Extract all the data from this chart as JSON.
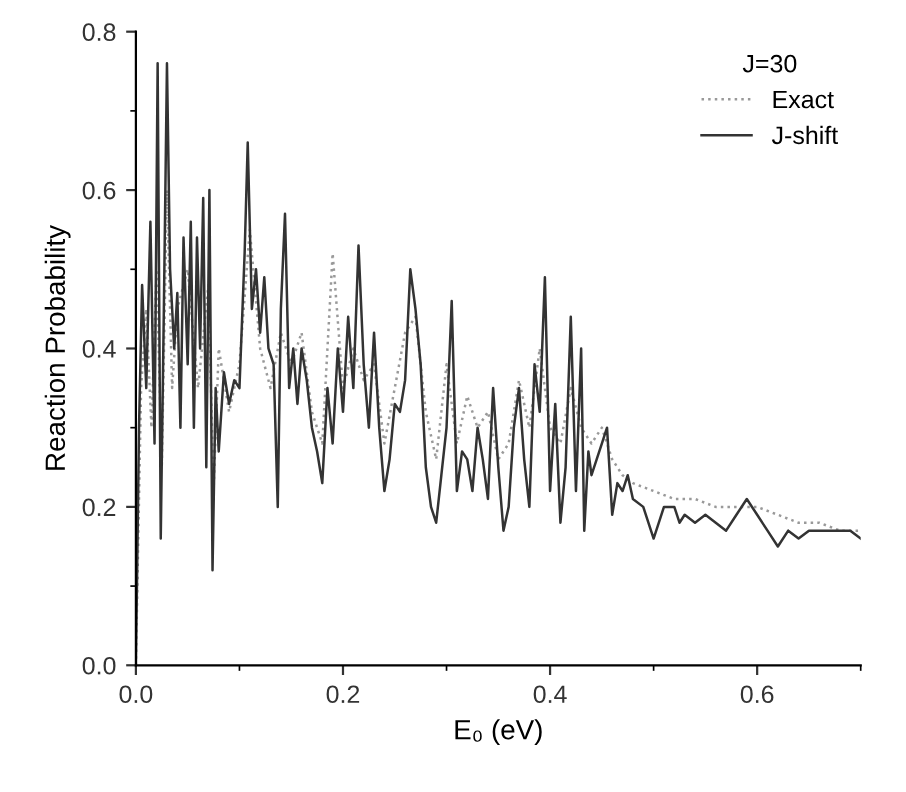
{
  "chart_data": {
    "type": "line",
    "xlabel": "E₀ (eV)",
    "ylabel": "Reaction Probability",
    "legend_title": "J=30",
    "legend": "top right",
    "grid": false,
    "marker": "none",
    "xlim": [
      0,
      0.7
    ],
    "ylim": [
      0,
      0.8
    ],
    "xticks": [
      {
        "value": 0,
        "label": "0.0"
      },
      0.2,
      0.4,
      0.6
    ],
    "yticks": [
      {
        "value": 0,
        "label": "0.0"
      },
      0.2,
      0.4,
      0.6,
      0.8
    ],
    "series": [
      {
        "name": "Exact",
        "color": "#999999",
        "line_style": "dotted",
        "x": [
          0.0,
          0.005,
          0.01,
          0.015,
          0.02,
          0.025,
          0.03,
          0.035,
          0.04,
          0.05,
          0.06,
          0.07,
          0.075,
          0.08,
          0.09,
          0.1,
          0.11,
          0.12,
          0.13,
          0.14,
          0.15,
          0.16,
          0.17,
          0.18,
          0.19,
          0.2,
          0.21,
          0.22,
          0.23,
          0.24,
          0.25,
          0.26,
          0.27,
          0.28,
          0.29,
          0.3,
          0.31,
          0.32,
          0.33,
          0.34,
          0.35,
          0.36,
          0.37,
          0.38,
          0.39,
          0.4,
          0.41,
          0.42,
          0.43,
          0.44,
          0.45,
          0.46,
          0.47,
          0.48,
          0.5,
          0.52,
          0.54,
          0.56,
          0.58,
          0.6,
          0.62,
          0.64,
          0.66,
          0.68,
          0.7
        ],
        "values": [
          0.0,
          0.35,
          0.45,
          0.3,
          0.5,
          0.25,
          0.6,
          0.35,
          0.45,
          0.5,
          0.35,
          0.48,
          0.22,
          0.4,
          0.32,
          0.38,
          0.55,
          0.4,
          0.35,
          0.42,
          0.38,
          0.42,
          0.32,
          0.28,
          0.52,
          0.35,
          0.4,
          0.36,
          0.38,
          0.28,
          0.35,
          0.42,
          0.44,
          0.32,
          0.26,
          0.38,
          0.28,
          0.34,
          0.3,
          0.32,
          0.26,
          0.28,
          0.36,
          0.3,
          0.4,
          0.3,
          0.28,
          0.35,
          0.3,
          0.28,
          0.3,
          0.26,
          0.24,
          0.23,
          0.22,
          0.21,
          0.21,
          0.2,
          0.2,
          0.2,
          0.19,
          0.18,
          0.18,
          0.17,
          0.17
        ]
      },
      {
        "name": "J-shift",
        "color": "#333333",
        "line_style": "solid",
        "x": [
          0.0,
          0.003,
          0.006,
          0.01,
          0.014,
          0.018,
          0.021,
          0.024,
          0.027,
          0.03,
          0.033,
          0.037,
          0.04,
          0.043,
          0.046,
          0.05,
          0.053,
          0.056,
          0.059,
          0.062,
          0.065,
          0.068,
          0.071,
          0.074,
          0.077,
          0.08,
          0.085,
          0.09,
          0.095,
          0.1,
          0.105,
          0.108,
          0.112,
          0.116,
          0.12,
          0.124,
          0.128,
          0.133,
          0.137,
          0.14,
          0.144,
          0.148,
          0.152,
          0.156,
          0.16,
          0.165,
          0.17,
          0.175,
          0.18,
          0.185,
          0.19,
          0.195,
          0.2,
          0.205,
          0.21,
          0.215,
          0.22,
          0.225,
          0.23,
          0.235,
          0.24,
          0.245,
          0.25,
          0.255,
          0.26,
          0.265,
          0.27,
          0.275,
          0.28,
          0.285,
          0.29,
          0.295,
          0.3,
          0.305,
          0.31,
          0.315,
          0.32,
          0.325,
          0.33,
          0.335,
          0.34,
          0.345,
          0.35,
          0.355,
          0.36,
          0.365,
          0.37,
          0.375,
          0.38,
          0.385,
          0.39,
          0.395,
          0.4,
          0.405,
          0.41,
          0.415,
          0.42,
          0.425,
          0.43,
          0.433,
          0.437,
          0.44,
          0.445,
          0.45,
          0.455,
          0.46,
          0.465,
          0.47,
          0.475,
          0.48,
          0.49,
          0.5,
          0.51,
          0.52,
          0.525,
          0.53,
          0.54,
          0.55,
          0.56,
          0.57,
          0.58,
          0.59,
          0.6,
          0.61,
          0.62,
          0.63,
          0.64,
          0.65,
          0.66,
          0.67,
          0.68,
          0.69,
          0.7
        ],
        "values": [
          0.0,
          0.3,
          0.48,
          0.35,
          0.56,
          0.28,
          0.76,
          0.16,
          0.45,
          0.76,
          0.5,
          0.4,
          0.47,
          0.3,
          0.54,
          0.38,
          0.56,
          0.3,
          0.54,
          0.4,
          0.59,
          0.25,
          0.6,
          0.12,
          0.35,
          0.27,
          0.37,
          0.33,
          0.36,
          0.35,
          0.52,
          0.66,
          0.45,
          0.5,
          0.42,
          0.49,
          0.4,
          0.38,
          0.2,
          0.45,
          0.57,
          0.35,
          0.4,
          0.33,
          0.4,
          0.36,
          0.3,
          0.27,
          0.23,
          0.35,
          0.28,
          0.4,
          0.32,
          0.44,
          0.35,
          0.53,
          0.38,
          0.3,
          0.42,
          0.3,
          0.22,
          0.26,
          0.33,
          0.32,
          0.36,
          0.5,
          0.45,
          0.38,
          0.25,
          0.2,
          0.18,
          0.24,
          0.3,
          0.46,
          0.22,
          0.27,
          0.26,
          0.22,
          0.3,
          0.26,
          0.21,
          0.35,
          0.25,
          0.17,
          0.2,
          0.3,
          0.35,
          0.26,
          0.2,
          0.38,
          0.32,
          0.49,
          0.22,
          0.33,
          0.18,
          0.25,
          0.44,
          0.22,
          0.4,
          0.17,
          0.27,
          0.24,
          0.26,
          0.28,
          0.3,
          0.19,
          0.23,
          0.22,
          0.24,
          0.21,
          0.2,
          0.16,
          0.2,
          0.2,
          0.18,
          0.19,
          0.18,
          0.19,
          0.18,
          0.17,
          0.19,
          0.21,
          0.19,
          0.17,
          0.15,
          0.17,
          0.16,
          0.17,
          0.17,
          0.17,
          0.17,
          0.17,
          0.16
        ]
      }
    ]
  }
}
